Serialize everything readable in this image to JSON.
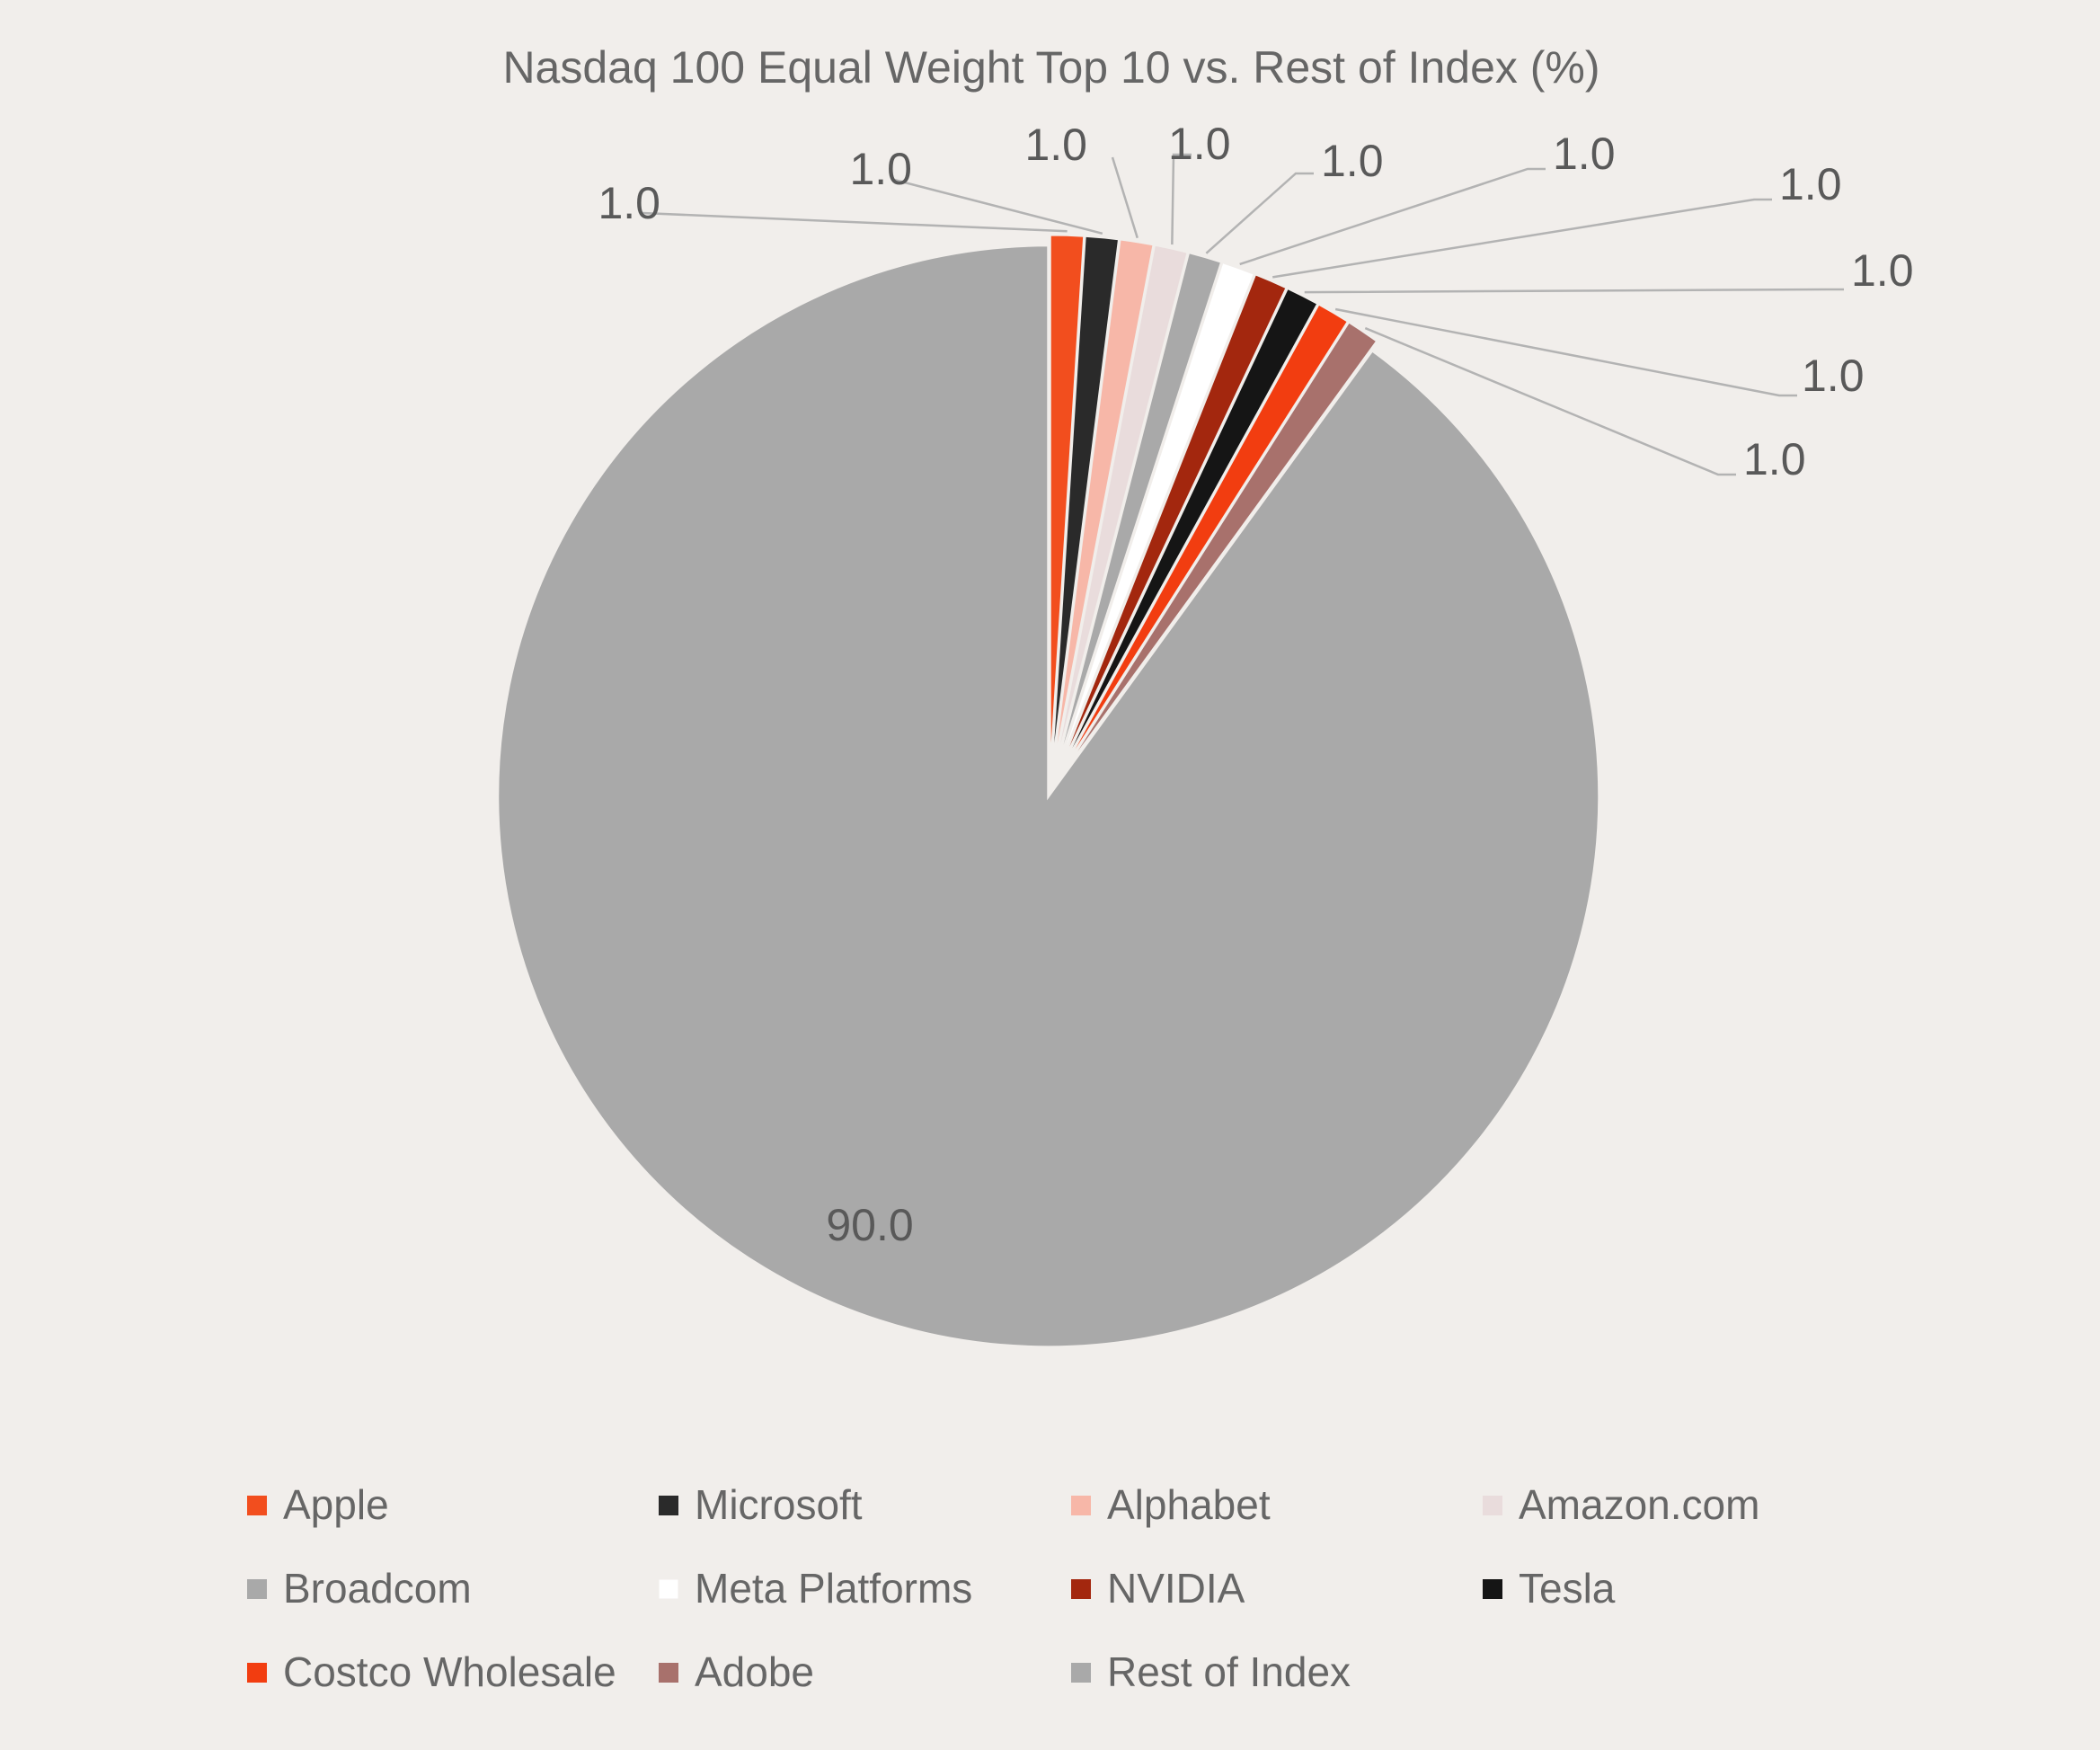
{
  "chart_data": {
    "type": "pie",
    "title": "Nasdaq 100 Equal Weight Top 10 vs. Rest of Index (%)",
    "slices": [
      {
        "name": "Apple",
        "value": 1.0,
        "label": "1.0",
        "color": "#f24e1e"
      },
      {
        "name": "Microsoft",
        "value": 1.0,
        "label": "1.0",
        "color": "#2a2a2a"
      },
      {
        "name": "Alphabet",
        "value": 1.0,
        "label": "1.0",
        "color": "#f7b7a8"
      },
      {
        "name": "Amazon.com",
        "value": 1.0,
        "label": "1.0",
        "color": "#e9dcdc"
      },
      {
        "name": "Broadcom",
        "value": 1.0,
        "label": "1.0",
        "color": "#a9a9a9"
      },
      {
        "name": "Meta Platforms",
        "value": 1.0,
        "label": "1.0",
        "color": "#ffffff"
      },
      {
        "name": "NVIDIA",
        "value": 1.0,
        "label": "1.0",
        "color": "#a3270e"
      },
      {
        "name": "Tesla",
        "value": 1.0,
        "label": "1.0",
        "color": "#151515"
      },
      {
        "name": "Costco Wholesale",
        "value": 1.0,
        "label": "1.0",
        "color": "#f23d10"
      },
      {
        "name": "Adobe",
        "value": 1.0,
        "label": "1.0",
        "color": "#a8716c"
      },
      {
        "name": "Rest of Index",
        "value": 90.0,
        "label": "90.0",
        "color": "#a9a9a9"
      }
    ],
    "legend_position": "bottom"
  }
}
